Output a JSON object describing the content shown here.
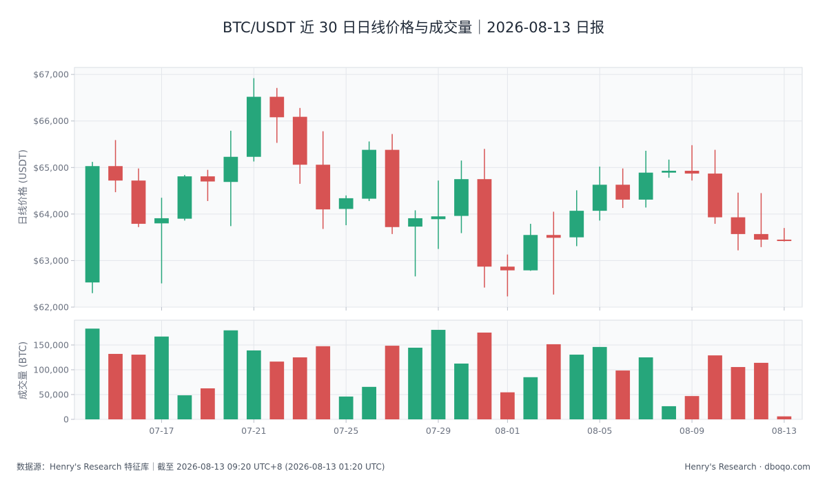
{
  "title": "BTC/USDT 近 30 日日线价格与成交量｜2026-08-13 日报",
  "colors": {
    "up": "#26a67b",
    "down": "#d75353"
  },
  "chart_data": [
    {
      "type": "candlestick",
      "ylabel": "日线价格 (USDT)",
      "ylim": [
        62000,
        67150
      ],
      "yticks": [
        62000,
        63000,
        64000,
        65000,
        66000,
        67000
      ],
      "ytick_labels": [
        "$62,000",
        "$63,000",
        "$64,000",
        "$65,000",
        "$66,000",
        "$67,000"
      ],
      "grid": true,
      "x": [
        "07-14",
        "07-15",
        "07-16",
        "07-17",
        "07-18",
        "07-19",
        "07-20",
        "07-21",
        "07-22",
        "07-23",
        "07-24",
        "07-25",
        "07-26",
        "07-27",
        "07-28",
        "07-29",
        "07-30",
        "07-31",
        "08-01",
        "08-02",
        "08-03",
        "08-04",
        "08-05",
        "08-06",
        "08-07",
        "08-08",
        "08-09",
        "08-10",
        "08-11",
        "08-12",
        "08-13"
      ],
      "open": [
        62530,
        65030,
        64720,
        63800,
        63900,
        64810,
        64690,
        65230,
        66520,
        66090,
        65060,
        64110,
        64330,
        65380,
        63730,
        63890,
        63960,
        64750,
        62870,
        62790,
        63550,
        63500,
        64070,
        64630,
        64310,
        64890,
        64930,
        64870,
        63930,
        63570,
        63450
      ],
      "high": [
        65120,
        65590,
        64980,
        64350,
        64840,
        64950,
        65790,
        66920,
        66710,
        66280,
        65780,
        64400,
        65560,
        65720,
        64080,
        64720,
        65150,
        65400,
        63130,
        63790,
        64050,
        64510,
        65020,
        64980,
        65360,
        65170,
        65480,
        65380,
        64460,
        64450,
        63700
      ],
      "low": [
        62300,
        64470,
        63720,
        62510,
        63860,
        64280,
        63740,
        65130,
        65530,
        64650,
        63680,
        63760,
        64280,
        63570,
        62660,
        63250,
        63590,
        62420,
        62230,
        62780,
        62270,
        63310,
        63860,
        64130,
        64140,
        64780,
        64720,
        63790,
        63220,
        63290,
        63410
      ],
      "close": [
        65030,
        64720,
        63790,
        63910,
        64810,
        64700,
        65230,
        66520,
        66080,
        65060,
        64100,
        64340,
        65380,
        63720,
        63910,
        63950,
        64750,
        62870,
        62790,
        63550,
        63490,
        64070,
        64630,
        64310,
        64890,
        64930,
        64870,
        63930,
        63570,
        63450,
        63420
      ]
    },
    {
      "type": "bar",
      "ylabel": "成交量 (BTC)",
      "ylim": [
        0,
        200000
      ],
      "yticks": [
        0,
        50000,
        100000,
        150000
      ],
      "ytick_labels": [
        "0",
        "50,000",
        "100,000",
        "150,000"
      ],
      "grid": true,
      "categories": [
        "07-14",
        "07-15",
        "07-16",
        "07-17",
        "07-18",
        "07-19",
        "07-20",
        "07-21",
        "07-22",
        "07-23",
        "07-24",
        "07-25",
        "07-26",
        "07-27",
        "07-28",
        "07-29",
        "07-30",
        "07-31",
        "08-01",
        "08-02",
        "08-03",
        "08-04",
        "08-05",
        "08-06",
        "08-07",
        "08-08",
        "08-09",
        "08-10",
        "08-11",
        "08-12",
        "08-13"
      ],
      "xtick_labels": [
        "07-17",
        "07-21",
        "07-25",
        "07-29",
        "08-01",
        "08-05",
        "08-09",
        "08-13"
      ],
      "values": [
        183000,
        132000,
        130500,
        167000,
        48500,
        62500,
        179500,
        139000,
        116500,
        125000,
        147500,
        46000,
        65500,
        148500,
        144500,
        180500,
        112500,
        175000,
        54500,
        85000,
        151500,
        130500,
        146000,
        98500,
        125000,
        26500,
        47000,
        129000,
        105500,
        114000,
        6000
      ]
    }
  ],
  "footer": {
    "source": "数据源：Henry's Research 特征库｜截至 2026-08-13 09:20 UTC+8 (2026-08-13 01:20 UTC)",
    "brand": "Henry's Research · dboqo.com"
  }
}
